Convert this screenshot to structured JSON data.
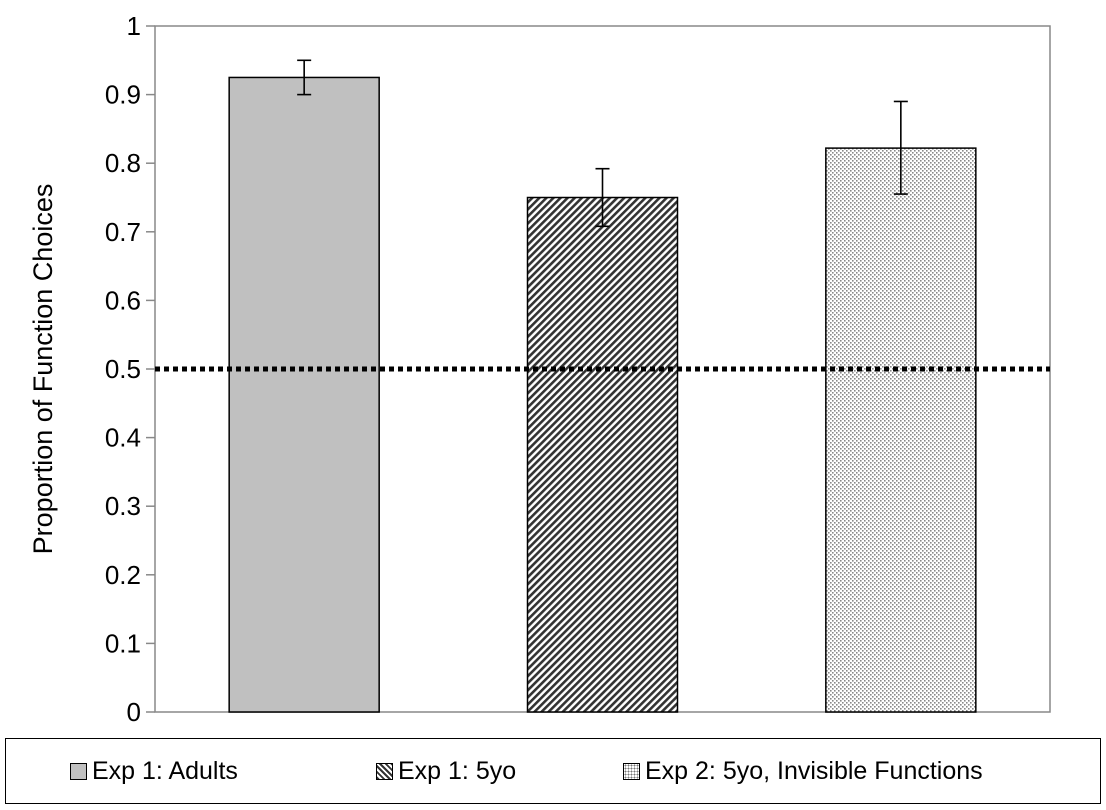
{
  "chart_data": {
    "type": "bar",
    "categories": [
      "Exp 1: Adults",
      "Exp 1: 5yo",
      "Exp 2: 5yo, Invisible Functions"
    ],
    "values": [
      0.925,
      0.75,
      0.822
    ],
    "error_bars": [
      {
        "low": 0.9,
        "high": 0.95
      },
      {
        "low": 0.708,
        "high": 0.792
      },
      {
        "low": 0.755,
        "high": 0.89
      }
    ],
    "reference_line": {
      "y": 0.5,
      "style": "dotted"
    },
    "title": "",
    "xlabel": "",
    "ylabel": "Proportion of Function Choices",
    "ylim": [
      0,
      1
    ],
    "yticks": [
      "0",
      "0.1",
      "0.2",
      "0.3",
      "0.4",
      "0.5",
      "0.6",
      "0.7",
      "0.8",
      "0.9",
      "1"
    ],
    "grid": false,
    "legend": {
      "placement": "bottom",
      "entries": [
        "Exp 1: Adults",
        "Exp 1: 5yo",
        "Exp 2: 5yo, Invisible Functions"
      ]
    },
    "colors": {
      "adults_fill": "#c0c0c0",
      "stripe_fill": "#333333",
      "dot_fill": "#999999",
      "axis": "#888888",
      "ref_line": "#000000"
    },
    "patterns": [
      "solid",
      "diagonal-stripes",
      "dots"
    ]
  }
}
